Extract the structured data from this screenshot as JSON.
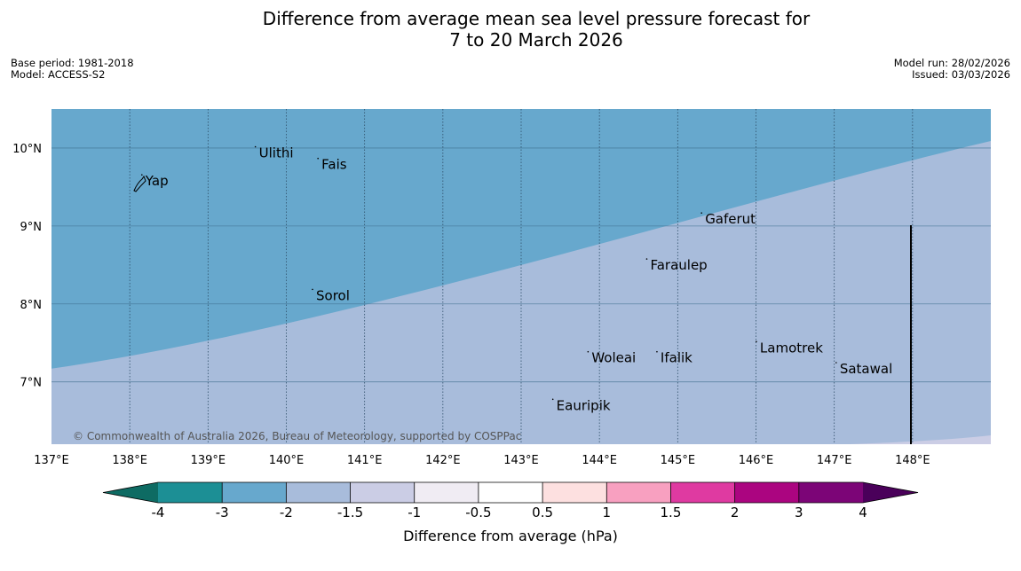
{
  "title": {
    "line1": "Difference from average mean sea level pressure forecast for",
    "line2": "7 to 20 March 2026"
  },
  "meta_left": {
    "base_period": "Base period: 1981-2018",
    "model": "Model: ACCESS-S2"
  },
  "meta_right": {
    "model_run": "Model run: 28/02/2026",
    "issued": "Issued: 03/03/2026"
  },
  "map": {
    "lon_range": [
      137,
      149
    ],
    "lat_range": [
      6.2,
      10.5
    ],
    "lon_ticks": [
      {
        "value": 137,
        "label": "137°E"
      },
      {
        "value": 138,
        "label": "138°E"
      },
      {
        "value": 139,
        "label": "139°E"
      },
      {
        "value": 140,
        "label": "140°E"
      },
      {
        "value": 141,
        "label": "141°E"
      },
      {
        "value": 142,
        "label": "142°E"
      },
      {
        "value": 143,
        "label": "143°E"
      },
      {
        "value": 144,
        "label": "144°E"
      },
      {
        "value": 145,
        "label": "145°E"
      },
      {
        "value": 146,
        "label": "146°E"
      },
      {
        "value": 147,
        "label": "147°E"
      },
      {
        "value": 148,
        "label": "148°E"
      }
    ],
    "lat_ticks": [
      {
        "value": 10,
        "label": "10°N"
      },
      {
        "value": 9,
        "label": "9°N"
      },
      {
        "value": 8,
        "label": "8°N"
      },
      {
        "value": 7,
        "label": "7°N"
      }
    ],
    "places": [
      {
        "name": "Yap",
        "lon": 138.2,
        "lat": 9.52
      },
      {
        "name": "Ulithi",
        "lon": 139.65,
        "lat": 9.88
      },
      {
        "name": "Fais",
        "lon": 140.45,
        "lat": 9.73
      },
      {
        "name": "Gaferut",
        "lon": 145.35,
        "lat": 9.03
      },
      {
        "name": "Faraulep",
        "lon": 144.65,
        "lat": 8.44
      },
      {
        "name": "Sorol",
        "lon": 140.38,
        "lat": 8.05
      },
      {
        "name": "Lamotrek",
        "lon": 146.05,
        "lat": 7.38
      },
      {
        "name": "Woleai",
        "lon": 143.9,
        "lat": 7.25
      },
      {
        "name": "Ifalik",
        "lon": 144.78,
        "lat": 7.25
      },
      {
        "name": "Satawal",
        "lon": 147.07,
        "lat": 7.11
      },
      {
        "name": "Eauripik",
        "lon": 143.45,
        "lat": 6.64
      }
    ],
    "boundary_lat_at_left": 7.17,
    "boundary_lat_at_right": 10.09,
    "colors": {
      "zone_neg3_neg2": "#67a8cd",
      "zone_neg2_neg1_5": "#a8bcdb",
      "zone_neg1_5_neg1": "#cbcde5"
    },
    "copyright": "© Commonwealth of Australia 2026, Bureau of Meteorology, supported by COSPPac"
  },
  "colorbar": {
    "label": "Difference from average (hPa)",
    "colors": [
      "#0e6b63",
      "#1c8f95",
      "#67a8cd",
      "#a8bcdb",
      "#cbcde5",
      "#f0ecf3",
      "#ffffff",
      "#fde0e0",
      "#f8a0c0",
      "#df3aa1",
      "#ab0580",
      "#7c0577",
      "#4a005a"
    ],
    "tick_labels": [
      "-4",
      "-3",
      "-2",
      "-1.5",
      "-1",
      "-0.5",
      "0.5",
      "1",
      "1.5",
      "2",
      "3",
      "4"
    ]
  }
}
